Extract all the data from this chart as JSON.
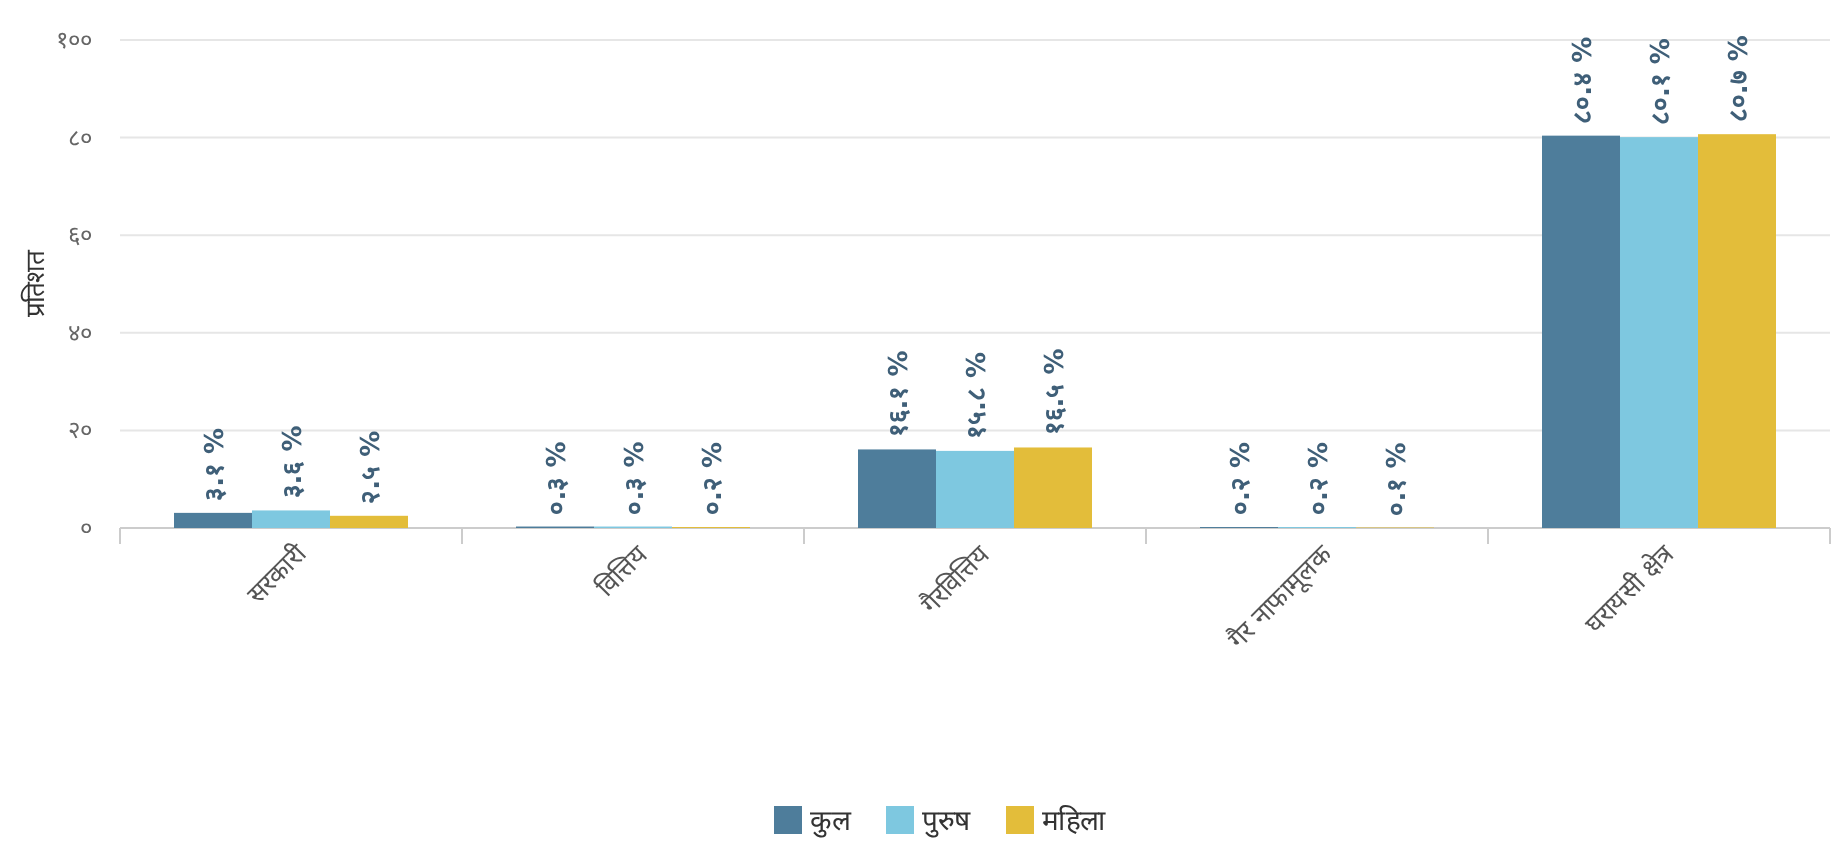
{
  "chart_data": {
    "type": "bar",
    "ylabel": "प्रतिशत",
    "categories": [
      "सरकारी",
      "वित्तिय",
      "गैरवित्तिय",
      "गैर नाफामूलक",
      "घरायसी क्षेत्र"
    ],
    "series": [
      {
        "name": "कुल",
        "color": "#4e7d9b",
        "values": [
          3.1,
          0.3,
          16.1,
          0.2,
          80.4
        ],
        "value_labels": [
          "३.१ %",
          "०.३ %",
          "१६.१ %",
          "०.२ %",
          "८०.४ %"
        ]
      },
      {
        "name": "पुरुष",
        "color": "#7ec8e0",
        "values": [
          3.6,
          0.3,
          15.8,
          0.2,
          80.1
        ],
        "value_labels": [
          "३.६ %",
          "०.३ %",
          "१५.८ %",
          "०.२ %",
          "८०.१ %"
        ]
      },
      {
        "name": "महिला",
        "color": "#e3bd3a",
        "values": [
          2.5,
          0.2,
          16.5,
          0.1,
          80.7
        ],
        "value_labels": [
          "२.५ %",
          "०.२ %",
          "१६.५ %",
          "०.१ %",
          "८०.७ %"
        ]
      }
    ],
    "ylim": [
      0,
      100
    ],
    "yticks": [
      {
        "value": 0,
        "label": "०"
      },
      {
        "value": 20,
        "label": "२०"
      },
      {
        "value": 40,
        "label": "४०"
      },
      {
        "value": 60,
        "label": "६०"
      },
      {
        "value": 80,
        "label": "८०"
      },
      {
        "value": 100,
        "label": "१००"
      }
    ],
    "grid": "y",
    "legend": "bottom"
  }
}
